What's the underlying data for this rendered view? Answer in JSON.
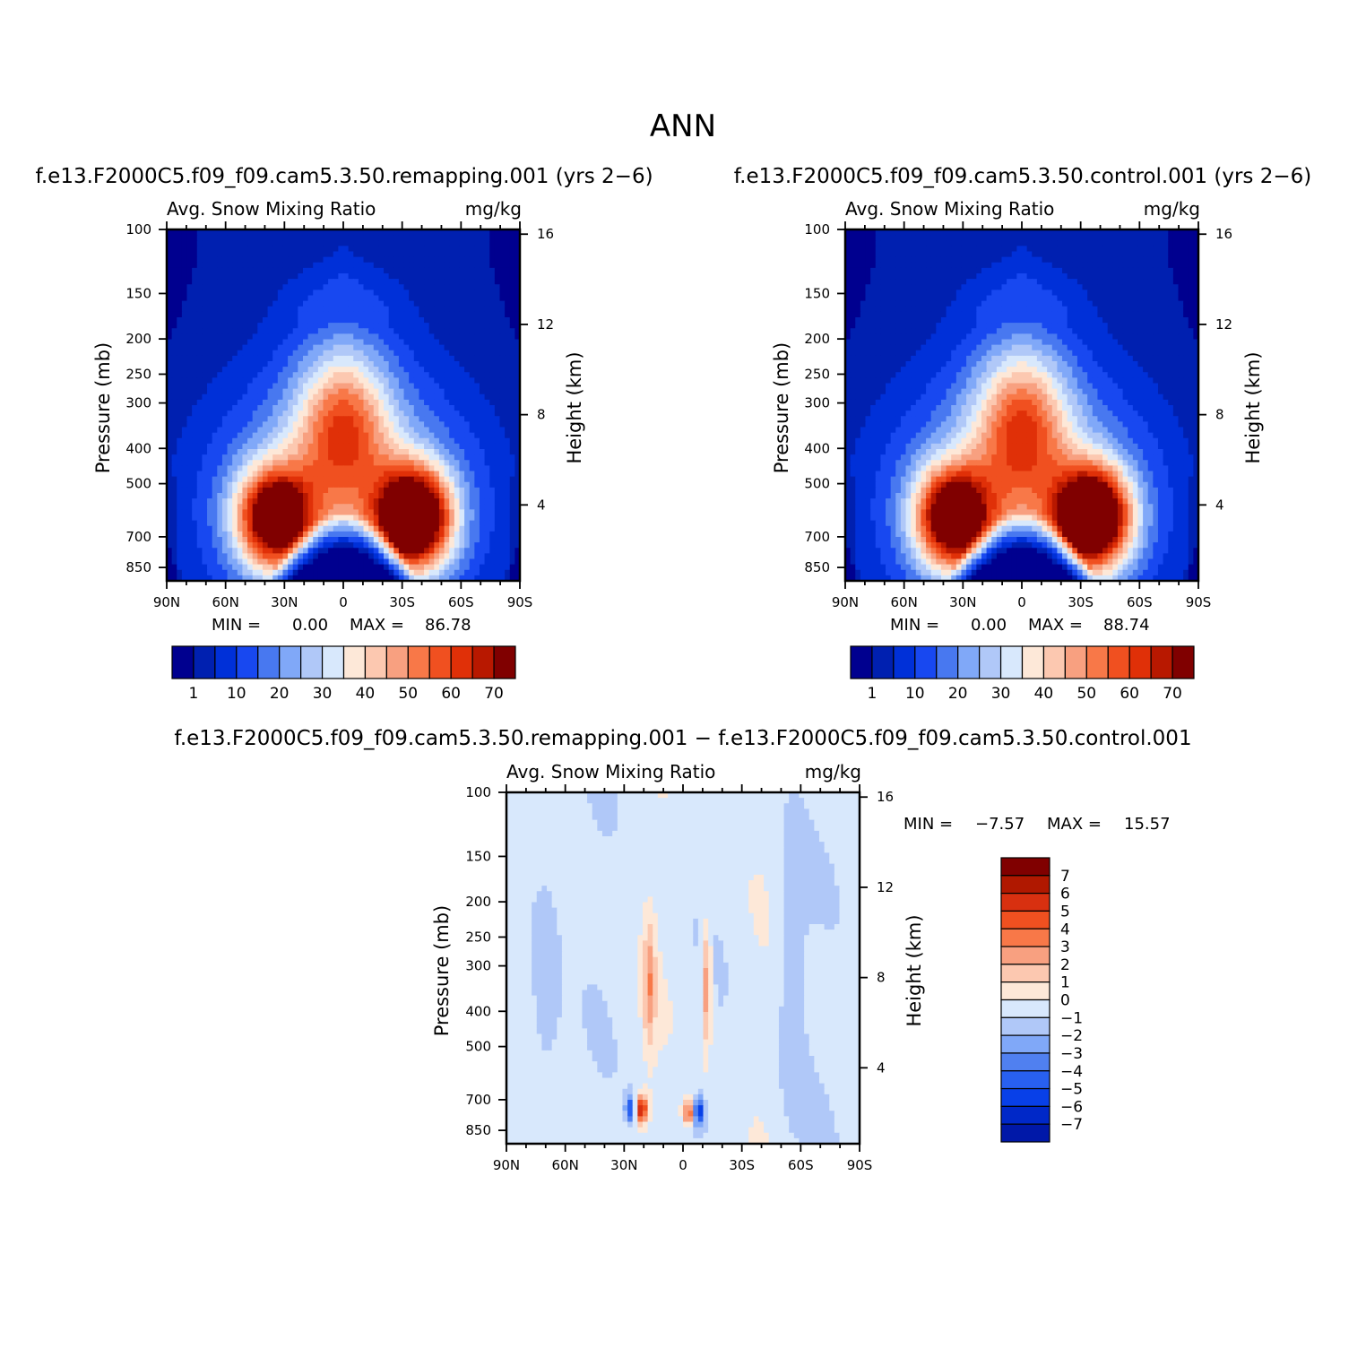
{
  "title": "ANN",
  "chart_data": [
    {
      "type": "heatmap",
      "id": "remapping",
      "run_title": "f.e13.F2000C5.f09_f09.cam5.3.50.remapping.001  (yrs 2−6)",
      "variable": "Avg. Snow Mixing Ratio",
      "units": "mg/kg",
      "ylabel": "Pressure  (mb)",
      "ylabel_right": "Height  (km)",
      "x_ticks": [
        "90N",
        "60N",
        "30N",
        "0",
        "30S",
        "60S",
        "90S"
      ],
      "y_ticks": [
        "100",
        "150",
        "200",
        "250",
        "300",
        "400",
        "500",
        "700",
        "850"
      ],
      "y_ticks_right": [
        "16",
        "12",
        "8",
        "4"
      ],
      "min_label": "MIN =",
      "min_value": "0.00",
      "max_label": "MAX =",
      "max_value": "86.78",
      "field": {
        "peak": 86.78,
        "lobe_centers_lat": [
          -36,
          35
        ],
        "lobe_center_p": 620
      },
      "colorbar": {
        "orientation": "horizontal",
        "levels": [
          "1",
          "10",
          "20",
          "30",
          "40",
          "50",
          "60",
          "70"
        ]
      }
    },
    {
      "type": "heatmap",
      "id": "control",
      "run_title": "f.e13.F2000C5.f09_f09.cam5.3.50.control.001  (yrs 2−6)",
      "variable": "Avg. Snow Mixing Ratio",
      "units": "mg/kg",
      "ylabel": "Pressure  (mb)",
      "ylabel_right": "Height  (km)",
      "x_ticks": [
        "90N",
        "60N",
        "30N",
        "0",
        "30S",
        "60S",
        "90S"
      ],
      "y_ticks": [
        "100",
        "150",
        "200",
        "250",
        "300",
        "400",
        "500",
        "700",
        "850"
      ],
      "y_ticks_right": [
        "16",
        "12",
        "8",
        "4"
      ],
      "min_label": "MIN =",
      "min_value": "0.00",
      "max_label": "MAX =",
      "max_value": "88.74",
      "field": {
        "peak": 88.74,
        "lobe_centers_lat": [
          -36,
          35
        ],
        "lobe_center_p": 620
      },
      "colorbar": {
        "orientation": "horizontal",
        "levels": [
          "1",
          "10",
          "20",
          "30",
          "40",
          "50",
          "60",
          "70"
        ]
      }
    },
    {
      "type": "heatmap",
      "id": "difference",
      "run_title": "f.e13.F2000C5.f09_f09.cam5.3.50.remapping.001  −  f.e13.F2000C5.f09_f09.cam5.3.50.control.001",
      "variable": "Avg. Snow Mixing Ratio",
      "units": "mg/kg",
      "ylabel": "Pressure  (mb)",
      "ylabel_right": "Height  (km)",
      "x_ticks": [
        "90N",
        "60N",
        "30N",
        "0",
        "30S",
        "60S",
        "90S"
      ],
      "y_ticks": [
        "100",
        "150",
        "200",
        "250",
        "300",
        "400",
        "500",
        "700",
        "850"
      ],
      "y_ticks_right": [
        "16",
        "12",
        "8",
        "4"
      ],
      "min_label": "MIN =",
      "min_value": "−7.57",
      "max_label": "MAX =",
      "max_value": "15.57",
      "colorbar": {
        "orientation": "vertical",
        "levels": [
          "7",
          "6",
          "5",
          "4",
          "3",
          "2",
          "1",
          "0",
          "−1",
          "−2",
          "−3",
          "−4",
          "−5",
          "−6",
          "−7"
        ]
      }
    }
  ],
  "colors": {
    "absolute_palette": [
      "#00008f",
      "#0020b0",
      "#0030d8",
      "#1848f0",
      "#4878f0",
      "#80a8f8",
      "#b0c8f8",
      "#d8e8fc",
      "#fde8d8",
      "#fcc8b0",
      "#f8a080",
      "#f87848",
      "#f05020",
      "#e03008",
      "#b81800",
      "#800000"
    ],
    "difference_palette": [
      "#00008f",
      "#0018a8",
      "#0028c8",
      "#0840e8",
      "#2860f0",
      "#5080f0",
      "#80a8f8",
      "#b0c8f8",
      "#d8e8fc",
      "#fde8d8",
      "#fcc8b0",
      "#f8a080",
      "#f87848",
      "#f05020",
      "#d83010",
      "#b01800",
      "#800000"
    ]
  }
}
